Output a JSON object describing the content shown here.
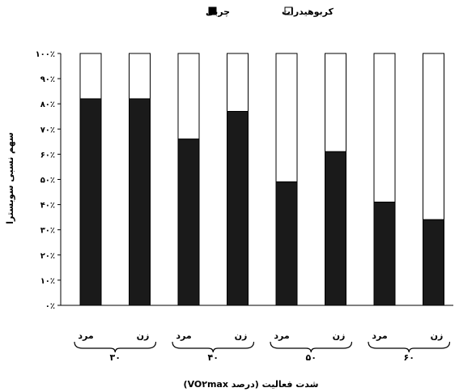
{
  "chart_data": {
    "type": "bar",
    "stacked": true,
    "percent": true,
    "ylabel": "سهم نسبی سوبسترا",
    "xlabel": "شدت فعالیت (درصد VO۲max)",
    "yticks": [
      "۰٪",
      "۱۰٪",
      "۲۰٪",
      "۳۰٪",
      "۴۰٪",
      "۵۰٪",
      "۶۰٪",
      "۷۰٪",
      "۸۰٪",
      "۹۰٪",
      "۱۰۰٪"
    ],
    "ylim": [
      0,
      100
    ],
    "legend_position": "top",
    "legend": [
      {
        "label": "کربوهیدرات",
        "color": "#ffffff"
      },
      {
        "label": "چربی",
        "color": "#1a1a1a"
      }
    ],
    "groups": [
      {
        "label": "۳۰",
        "bars": [
          {
            "label": "مرد",
            "fat": 82,
            "carb": 18
          },
          {
            "label": "زن",
            "fat": 82,
            "carb": 18
          }
        ]
      },
      {
        "label": "۴۰",
        "bars": [
          {
            "label": "مرد",
            "fat": 66,
            "carb": 34
          },
          {
            "label": "زن",
            "fat": 77,
            "carb": 23
          }
        ]
      },
      {
        "label": "۵۰",
        "bars": [
          {
            "label": "مرد",
            "fat": 49,
            "carb": 51
          },
          {
            "label": "زن",
            "fat": 61,
            "carb": 39
          }
        ]
      },
      {
        "label": "۶۰",
        "bars": [
          {
            "label": "مرد",
            "fat": 41,
            "carb": 59
          },
          {
            "label": "زن",
            "fat": 34,
            "carb": 66
          }
        ]
      }
    ]
  },
  "colors": {
    "fat": "#1a1a1a",
    "carb": "#ffffff",
    "axis": "#000000"
  }
}
